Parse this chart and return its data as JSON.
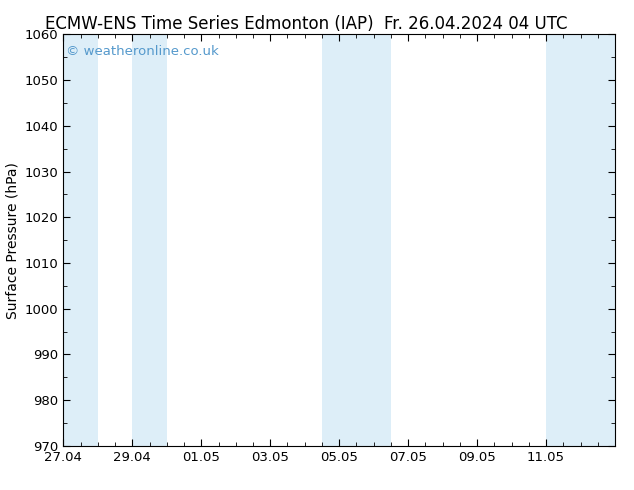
{
  "title_left": "ECMW-ENS Time Series Edmonton (IAP)",
  "title_right": "Fr. 26.04.2024 04 UTC",
  "ylabel": "Surface Pressure (hPa)",
  "ylim": [
    970,
    1060
  ],
  "yticks": [
    970,
    980,
    990,
    1000,
    1010,
    1020,
    1030,
    1040,
    1050,
    1060
  ],
  "xlim": [
    0,
    16
  ],
  "xtick_labels": [
    "27.04",
    "29.04",
    "01.05",
    "03.05",
    "05.05",
    "07.05",
    "09.05",
    "11.05"
  ],
  "xtick_positions": [
    0,
    2,
    4,
    6,
    8,
    10,
    12,
    14
  ],
  "watermark": "© weatheronline.co.uk",
  "watermark_color": "#5599cc",
  "background_color": "#ffffff",
  "band_color": "#ddeef8",
  "bands": [
    {
      "x_start": 0,
      "x_end": 1.0
    },
    {
      "x_start": 2.0,
      "x_end": 3.0
    },
    {
      "x_start": 7.5,
      "x_end": 9.5
    },
    {
      "x_start": 14.0,
      "x_end": 16.0
    }
  ],
  "title_fontsize": 12,
  "tick_fontsize": 9.5,
  "ylabel_fontsize": 10,
  "watermark_fontsize": 9.5
}
